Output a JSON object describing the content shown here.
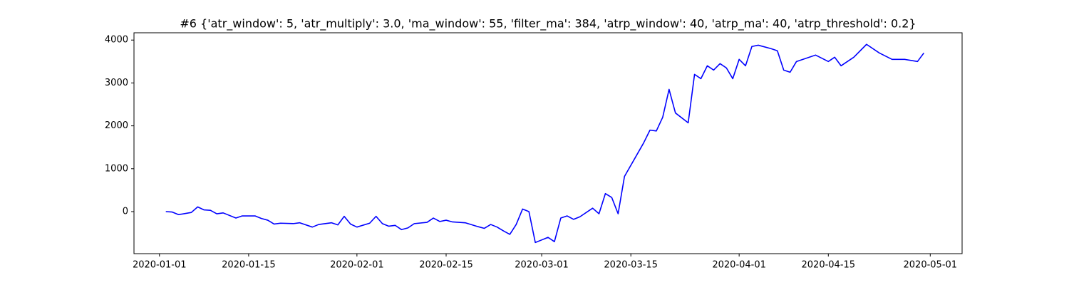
{
  "chart_data": {
    "type": "line",
    "title": "#6 {'atr_window': 5, 'atr_multiply': 3.0, 'ma_window': 55, 'filter_ma': 384, 'atrp_window': 40, 'atrp_ma': 40, 'atrp_threshold': 0.2}",
    "color": "#0000ff",
    "x": [
      "2020-01-02",
      "2020-01-03",
      "2020-01-04",
      "2020-01-06",
      "2020-01-07",
      "2020-01-08",
      "2020-01-09",
      "2020-01-10",
      "2020-01-11",
      "2020-01-13",
      "2020-01-14",
      "2020-01-16",
      "2020-01-17",
      "2020-01-18",
      "2020-01-19",
      "2020-01-20",
      "2020-01-22",
      "2020-01-23",
      "2020-01-25",
      "2020-01-26",
      "2020-01-28",
      "2020-01-29",
      "2020-01-30",
      "2020-01-31",
      "2020-02-01",
      "2020-02-03",
      "2020-02-04",
      "2020-02-05",
      "2020-02-06",
      "2020-02-07",
      "2020-02-08",
      "2020-02-09",
      "2020-02-10",
      "2020-02-12",
      "2020-02-13",
      "2020-02-14",
      "2020-02-15",
      "2020-02-16",
      "2020-02-18",
      "2020-02-20",
      "2020-02-21",
      "2020-02-22",
      "2020-02-23",
      "2020-02-24",
      "2020-02-25",
      "2020-02-26",
      "2020-02-27",
      "2020-02-28",
      "2020-02-29",
      "2020-03-02",
      "2020-03-03",
      "2020-03-04",
      "2020-03-05",
      "2020-03-06",
      "2020-03-07",
      "2020-03-09",
      "2020-03-10",
      "2020-03-11",
      "2020-03-12",
      "2020-03-13",
      "2020-03-14",
      "2020-03-17",
      "2020-03-18",
      "2020-03-19",
      "2020-03-20",
      "2020-03-21",
      "2020-03-22",
      "2020-03-24",
      "2020-03-25",
      "2020-03-26",
      "2020-03-27",
      "2020-03-28",
      "2020-03-29",
      "2020-03-30",
      "2020-03-31",
      "2020-04-01",
      "2020-04-02",
      "2020-04-03",
      "2020-04-04",
      "2020-04-06",
      "2020-04-07",
      "2020-04-08",
      "2020-04-09",
      "2020-04-10",
      "2020-04-13",
      "2020-04-15",
      "2020-04-16",
      "2020-04-17",
      "2020-04-19",
      "2020-04-21",
      "2020-04-23",
      "2020-04-25",
      "2020-04-27",
      "2020-04-29",
      "2020-04-30"
    ],
    "values": [
      0,
      -10,
      -70,
      -20,
      110,
      40,
      30,
      -50,
      -30,
      -150,
      -100,
      -100,
      -160,
      -200,
      -290,
      -270,
      -280,
      -260,
      -360,
      -300,
      -260,
      -310,
      -110,
      -290,
      -360,
      -270,
      -110,
      -280,
      -340,
      -320,
      -420,
      -380,
      -280,
      -250,
      -150,
      -230,
      -200,
      -240,
      -260,
      -350,
      -390,
      -300,
      -360,
      -450,
      -530,
      -300,
      60,
      0,
      -720,
      -600,
      -700,
      -150,
      -100,
      -180,
      -120,
      80,
      -50,
      420,
      330,
      -50,
      820,
      1600,
      1900,
      1880,
      2200,
      2850,
      2300,
      2070,
      3200,
      3100,
      3400,
      3300,
      3450,
      3350,
      3100,
      3550,
      3400,
      3850,
      3880,
      3800,
      3750,
      3300,
      3250,
      3500,
      3650,
      3500,
      3600,
      3400,
      3600,
      3900,
      3700,
      3550,
      3550,
      3500,
      3700
    ],
    "xlim": [
      "2019-12-28",
      "2020-05-06"
    ],
    "xticks": [
      "2020-01-01",
      "2020-01-15",
      "2020-02-01",
      "2020-02-15",
      "2020-03-01",
      "2020-03-15",
      "2020-04-01",
      "2020-04-15",
      "2020-05-01"
    ],
    "ylim": [
      -980,
      4170
    ],
    "yticks": [
      0,
      1000,
      2000,
      3000,
      4000
    ],
    "grid": false
  }
}
